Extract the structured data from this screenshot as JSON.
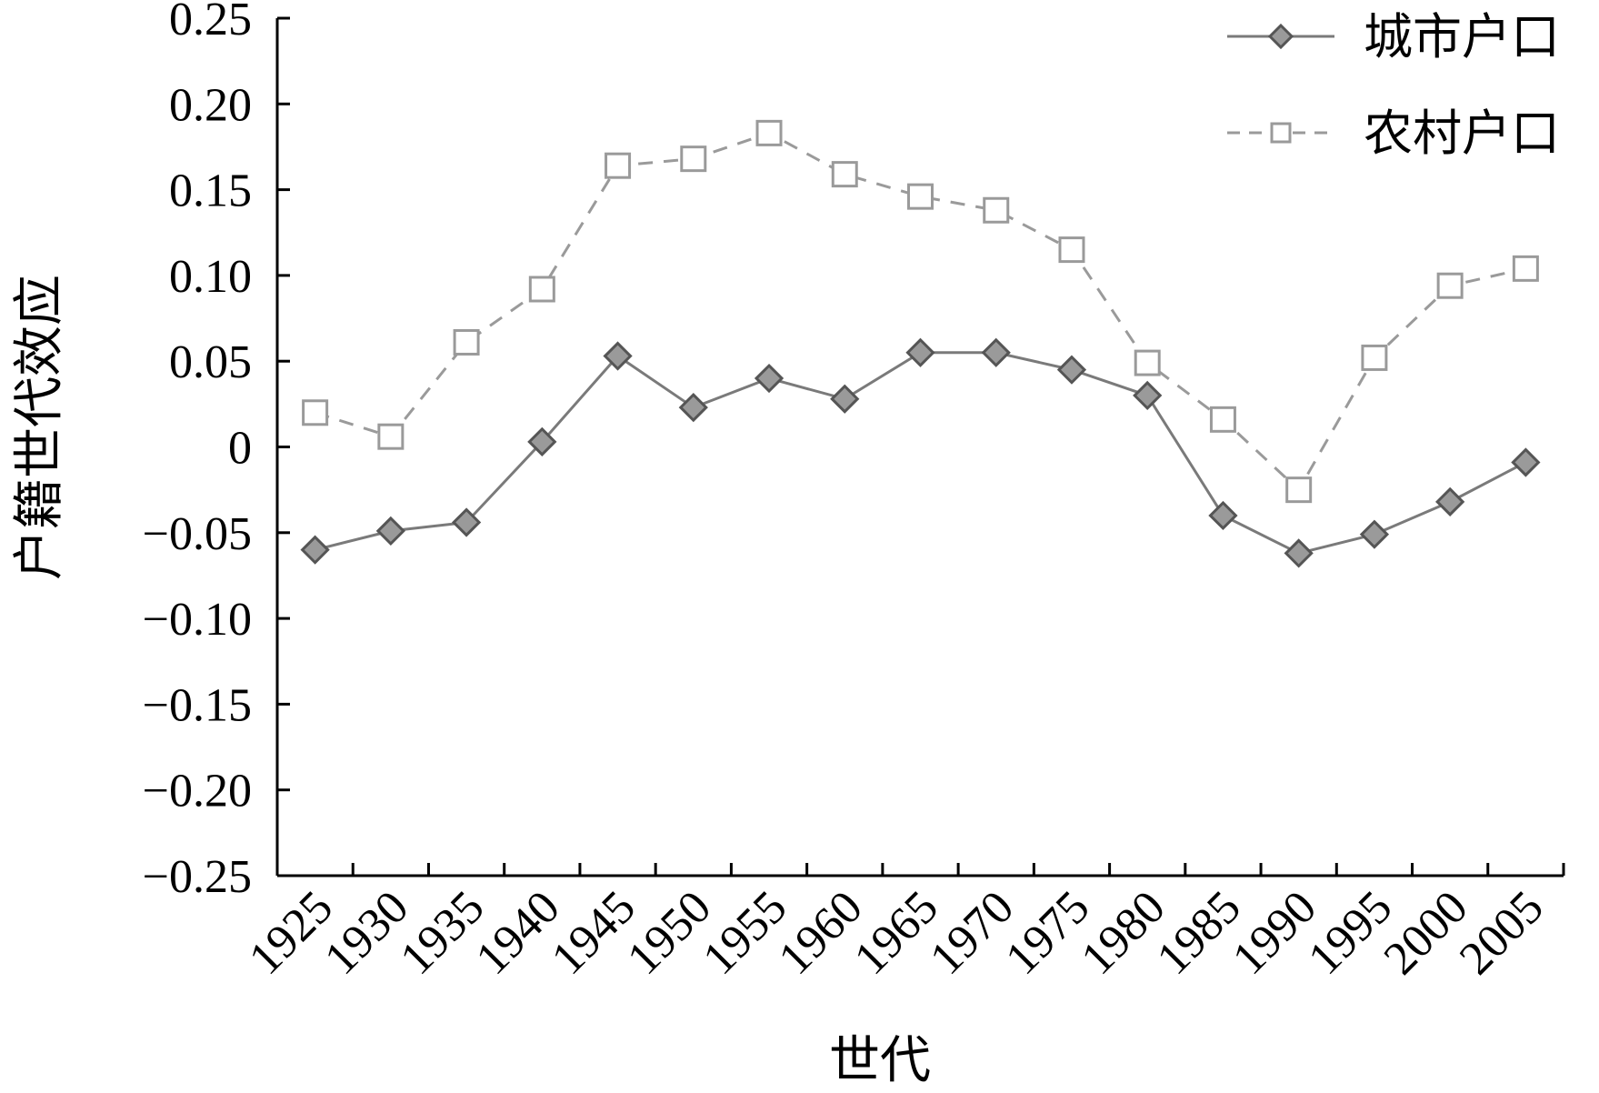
{
  "chart_data": {
    "type": "line",
    "xlabel": "世代",
    "ylabel": "户籍世代效应",
    "categories": [
      "1925",
      "1930",
      "1935",
      "1940",
      "1945",
      "1950",
      "1955",
      "1960",
      "1965",
      "1970",
      "1975",
      "1980",
      "1985",
      "1990",
      "1995",
      "2000",
      "2005"
    ],
    "ylim": [
      -0.25,
      0.25
    ],
    "yticks": [
      0.25,
      0.2,
      0.15,
      0.1,
      0.05,
      0,
      -0.05,
      -0.1,
      -0.15,
      -0.2,
      -0.25
    ],
    "ytick_labels": [
      "0.25",
      "0.20",
      "0.15",
      "0.10",
      "0.05",
      "0",
      "−0.05",
      "−0.10",
      "−0.15",
      "−0.20",
      "−0.25"
    ],
    "legend_position": "top-right",
    "grid": false,
    "series": [
      {
        "name": "城市户口",
        "marker": "diamond",
        "line_style": "solid",
        "color": "#7a7a7a",
        "marker_fill": "#9a9a9a",
        "values": [
          -0.06,
          -0.049,
          -0.044,
          0.003,
          0.053,
          0.023,
          0.04,
          0.028,
          0.055,
          0.055,
          0.045,
          0.03,
          -0.04,
          -0.062,
          -0.051,
          -0.032,
          -0.009
        ]
      },
      {
        "name": "农村户口",
        "marker": "square-open",
        "line_style": "dashed",
        "color": "#9a9a9a",
        "marker_fill": "#ffffff",
        "values": [
          0.02,
          0.006,
          0.061,
          0.092,
          0.164,
          0.168,
          0.183,
          0.159,
          0.146,
          0.138,
          0.115,
          0.049,
          0.016,
          -0.025,
          0.052,
          0.094,
          0.104
        ]
      }
    ]
  }
}
